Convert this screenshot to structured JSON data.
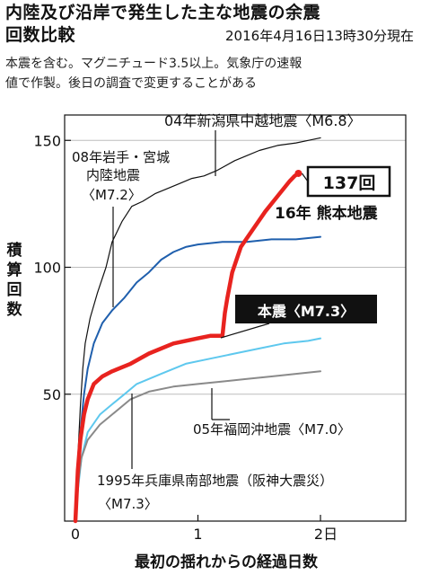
{
  "header": {
    "title_line1": "内陸及び沿岸で発生した主な地震の余震",
    "title_line2": "回数比較",
    "timestamp": "2016年4月16日13時30分現在",
    "note_line1": "本震を含む。マグニチュード3.5以上。気象庁の速報",
    "note_line2": "値で作製。後日の調査で変更することがある"
  },
  "chart_data": {
    "type": "line",
    "title": "内陸及び沿岸で発生した主な地震の余震回数比較",
    "xlabel": "最初の揺れからの経過日数",
    "ylabel": "積算回数",
    "xlim": [
      0,
      2.5
    ],
    "ylim": [
      0,
      160
    ],
    "x_ticks": [
      {
        "value": 0,
        "label": "0"
      },
      {
        "value": 1,
        "label": "1"
      },
      {
        "value": 2,
        "label": "2日"
      }
    ],
    "y_ticks": [
      {
        "value": 50,
        "label": "50"
      },
      {
        "value": 100,
        "label": "100"
      },
      {
        "value": 150,
        "label": "150"
      }
    ],
    "series": [
      {
        "name": "04年新潟県中越地震〈M6.8〉",
        "color": "#111111",
        "width": 1.2,
        "points": [
          [
            0,
            0
          ],
          [
            0.02,
            25
          ],
          [
            0.04,
            45
          ],
          [
            0.06,
            60
          ],
          [
            0.08,
            70
          ],
          [
            0.12,
            80
          ],
          [
            0.18,
            90
          ],
          [
            0.25,
            100
          ],
          [
            0.3,
            110
          ],
          [
            0.38,
            118
          ],
          [
            0.46,
            124
          ],
          [
            0.55,
            126
          ],
          [
            0.65,
            129
          ],
          [
            0.75,
            131
          ],
          [
            0.85,
            133
          ],
          [
            0.95,
            135
          ],
          [
            1.05,
            136
          ],
          [
            1.15,
            138
          ],
          [
            1.3,
            142
          ],
          [
            1.4,
            144
          ],
          [
            1.5,
            146
          ],
          [
            1.65,
            148
          ],
          [
            1.8,
            149
          ],
          [
            1.9,
            150
          ],
          [
            2.0,
            151
          ]
        ]
      },
      {
        "name": "08年岩手・宮城内陸地震〈M7.2〉",
        "color": "#1f5fad",
        "width": 2,
        "points": [
          [
            0,
            0
          ],
          [
            0.02,
            20
          ],
          [
            0.04,
            35
          ],
          [
            0.07,
            50
          ],
          [
            0.1,
            60
          ],
          [
            0.15,
            70
          ],
          [
            0.22,
            78
          ],
          [
            0.3,
            83
          ],
          [
            0.4,
            88
          ],
          [
            0.5,
            94
          ],
          [
            0.6,
            98
          ],
          [
            0.7,
            103
          ],
          [
            0.8,
            106
          ],
          [
            0.9,
            108
          ],
          [
            1.0,
            109
          ],
          [
            1.2,
            110
          ],
          [
            1.4,
            110
          ],
          [
            1.6,
            111
          ],
          [
            1.8,
            111
          ],
          [
            2.0,
            112
          ]
        ]
      },
      {
        "name": "16年 熊本地震",
        "color": "#e8231f",
        "width": 4.5,
        "points": [
          [
            0,
            0
          ],
          [
            0.02,
            20
          ],
          [
            0.04,
            32
          ],
          [
            0.07,
            42
          ],
          [
            0.1,
            48
          ],
          [
            0.15,
            54
          ],
          [
            0.22,
            57
          ],
          [
            0.3,
            59
          ],
          [
            0.45,
            62
          ],
          [
            0.6,
            66
          ],
          [
            0.8,
            70
          ],
          [
            1.0,
            72
          ],
          [
            1.1,
            73
          ],
          [
            1.2,
            73
          ],
          [
            1.22,
            82
          ],
          [
            1.24,
            88
          ],
          [
            1.28,
            98
          ],
          [
            1.35,
            108
          ],
          [
            1.45,
            115
          ],
          [
            1.55,
            122
          ],
          [
            1.65,
            128
          ],
          [
            1.75,
            134
          ],
          [
            1.79,
            136
          ],
          [
            1.82,
            137
          ]
        ],
        "end_label": "137回"
      },
      {
        "name": "1995年兵庫県南部地震（阪神大震災）〈M7.3〉",
        "color": "#5ec8ee",
        "width": 2,
        "points": [
          [
            0,
            0
          ],
          [
            0.02,
            12
          ],
          [
            0.05,
            25
          ],
          [
            0.1,
            35
          ],
          [
            0.2,
            42
          ],
          [
            0.3,
            46
          ],
          [
            0.4,
            50
          ],
          [
            0.5,
            54
          ],
          [
            0.7,
            58
          ],
          [
            0.9,
            62
          ],
          [
            1.1,
            64
          ],
          [
            1.3,
            66
          ],
          [
            1.5,
            68
          ],
          [
            1.7,
            70
          ],
          [
            1.9,
            71
          ],
          [
            2.0,
            72
          ]
        ]
      },
      {
        "name": "05年福岡沖地震〈M7.0〉",
        "color": "#8a8a8a",
        "width": 2,
        "points": [
          [
            0,
            0
          ],
          [
            0.02,
            14
          ],
          [
            0.05,
            25
          ],
          [
            0.1,
            32
          ],
          [
            0.2,
            38
          ],
          [
            0.3,
            42
          ],
          [
            0.45,
            48
          ],
          [
            0.6,
            51
          ],
          [
            0.8,
            53
          ],
          [
            1.0,
            54
          ],
          [
            1.2,
            55
          ],
          [
            1.4,
            56
          ],
          [
            1.6,
            57
          ],
          [
            1.8,
            58
          ],
          [
            2.0,
            59
          ]
        ]
      }
    ],
    "annotations": {
      "niigata_label": "04年新潟県中越地震〈M6.8〉",
      "iwate_label_line1": "08年岩手・宮城",
      "iwate_label_line2": "内陸地震",
      "iwate_label_line3": "〈M7.2〉",
      "kumamoto_label": "16年 熊本地震",
      "kumamoto_count": "137回",
      "mainshock_label": "本震〈M7.3〉",
      "fukuoka_label": "05年福岡沖地震〈M7.0〉",
      "hyogo_label_line1": "1995年兵庫県南部地震（阪神大震災）",
      "hyogo_label_line2": "〈M7.3〉"
    }
  }
}
